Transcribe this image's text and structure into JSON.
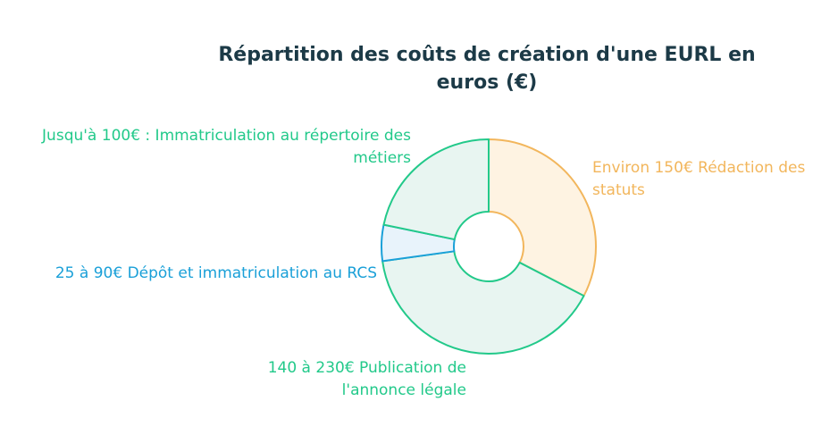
{
  "chart_data": {
    "type": "pie",
    "title": "Répartition des coûts de création d'une EURL en euros (€)",
    "slices": [
      {
        "label": "Environ 150€ Rédaction des statuts",
        "value": 150,
        "color": "#f2b65c",
        "fill": "#fef3e2"
      },
      {
        "label": "140 à 230€ Publication de l'annonce légale",
        "value": 185,
        "color": "#22c98a",
        "fill": "#e8f5f1"
      },
      {
        "label": "25 à 90€ Dépôt et immatriculation au RCS",
        "value": 25,
        "color": "#1aa0d8",
        "fill": "#e8f3fb"
      },
      {
        "label": "Jusqu'à 100€ : Immatriculation au répertoire des métiers",
        "value": 100,
        "color": "#22c98a",
        "fill": "#e8f5f1"
      }
    ],
    "donut": true,
    "legend": "none"
  }
}
